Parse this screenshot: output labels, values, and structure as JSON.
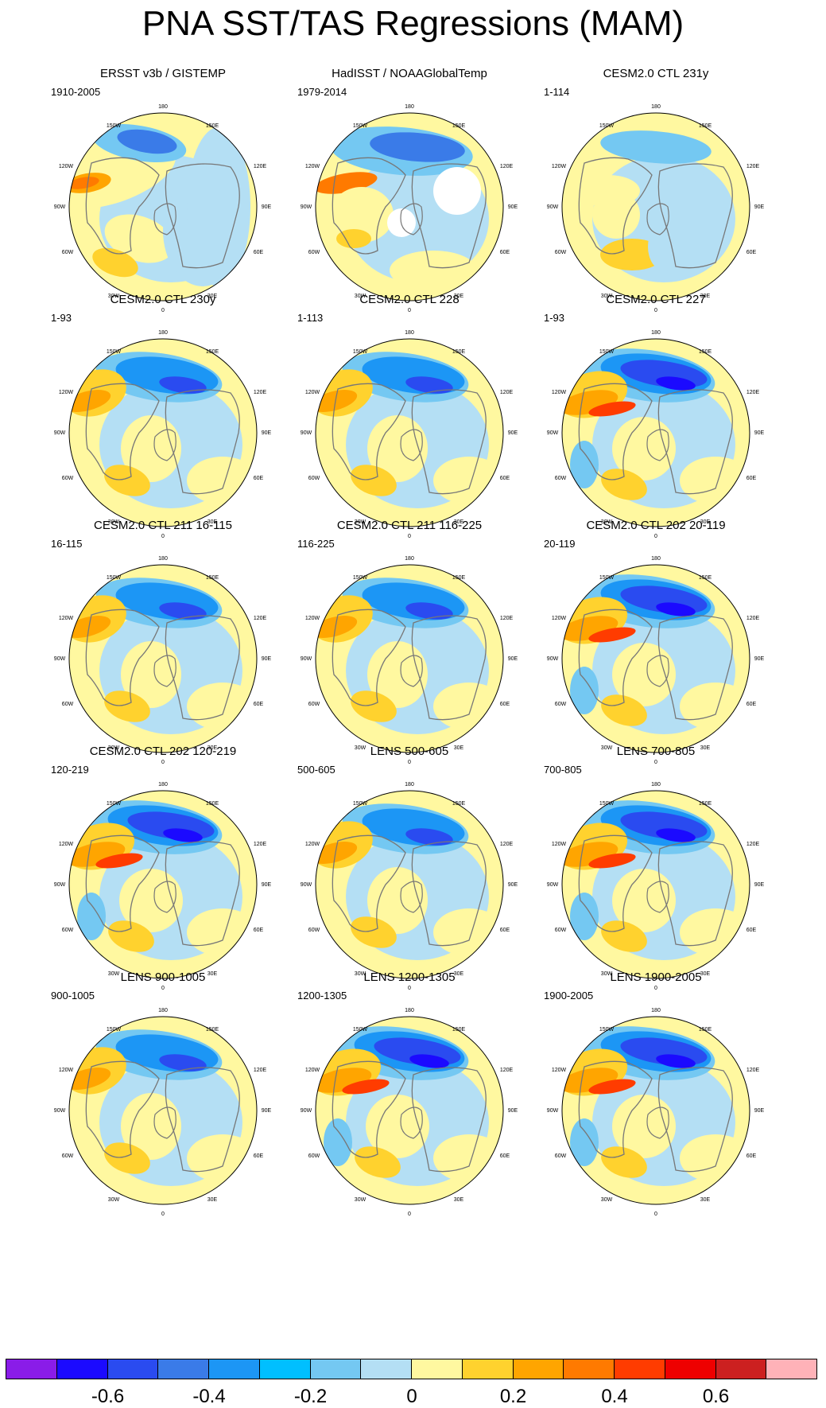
{
  "title": "PNA SST/TAS Regressions (MAM)",
  "grid_labels": [
    "180",
    "150E",
    "120E",
    "90E",
    "60E",
    "30E",
    "0",
    "30W",
    "60W",
    "90W",
    "120W",
    "150W"
  ],
  "panels": [
    {
      "title": "ERSST v3b / GISTEMP",
      "period": "1910-2005",
      "variant": 0
    },
    {
      "title": "HadISST / NOAAGlobalTemp",
      "period": "1979-2014",
      "variant": 1
    },
    {
      "title": "CESM2.0 CTL 231y",
      "period": "1-114",
      "variant": 2
    },
    {
      "title": "CESM2.0 CTL 230y",
      "period": "1-93",
      "variant": 3
    },
    {
      "title": "CESM2.0 CTL 228",
      "period": "1-113",
      "variant": 3
    },
    {
      "title": "CESM2.0 CTL 227",
      "period": "1-93",
      "variant": 4
    },
    {
      "title": "CESM2.0 CTL 211 16-115",
      "period": "16-115",
      "variant": 3
    },
    {
      "title": "CESM2.0 CTL 211 116-225",
      "period": "116-225",
      "variant": 3
    },
    {
      "title": "CESM2.0 CTL 202 20-119",
      "period": "20-119",
      "variant": 4
    },
    {
      "title": "CESM2.0 CTL 202 120-219",
      "period": "120-219",
      "variant": 4
    },
    {
      "title": "LENS 500-605",
      "period": "500-605",
      "variant": 3
    },
    {
      "title": "LENS 700-805",
      "period": "700-805",
      "variant": 4
    },
    {
      "title": "LENS 900-1005",
      "period": "900-1005",
      "variant": 3
    },
    {
      "title": "LENS 1200-1305",
      "period": "1200-1305",
      "variant": 4
    },
    {
      "title": "LENS 1900-2005",
      "period": "1900-2005",
      "variant": 4
    }
  ],
  "colorbar": {
    "colors": [
      "#8a1ce8",
      "#1b0aff",
      "#2a4bf0",
      "#3a7be8",
      "#1c96f5",
      "#00bfff",
      "#74c8f2",
      "#b4dff4",
      "#fff8a0",
      "#ffd22e",
      "#ffa500",
      "#ff7a00",
      "#ff3c00",
      "#ee0000",
      "#cc2020",
      "#ffb2b8"
    ],
    "ticks": [
      "-0.6",
      "-0.4",
      "-0.2",
      "0",
      "0.2",
      "0.4",
      "0.6"
    ]
  }
}
